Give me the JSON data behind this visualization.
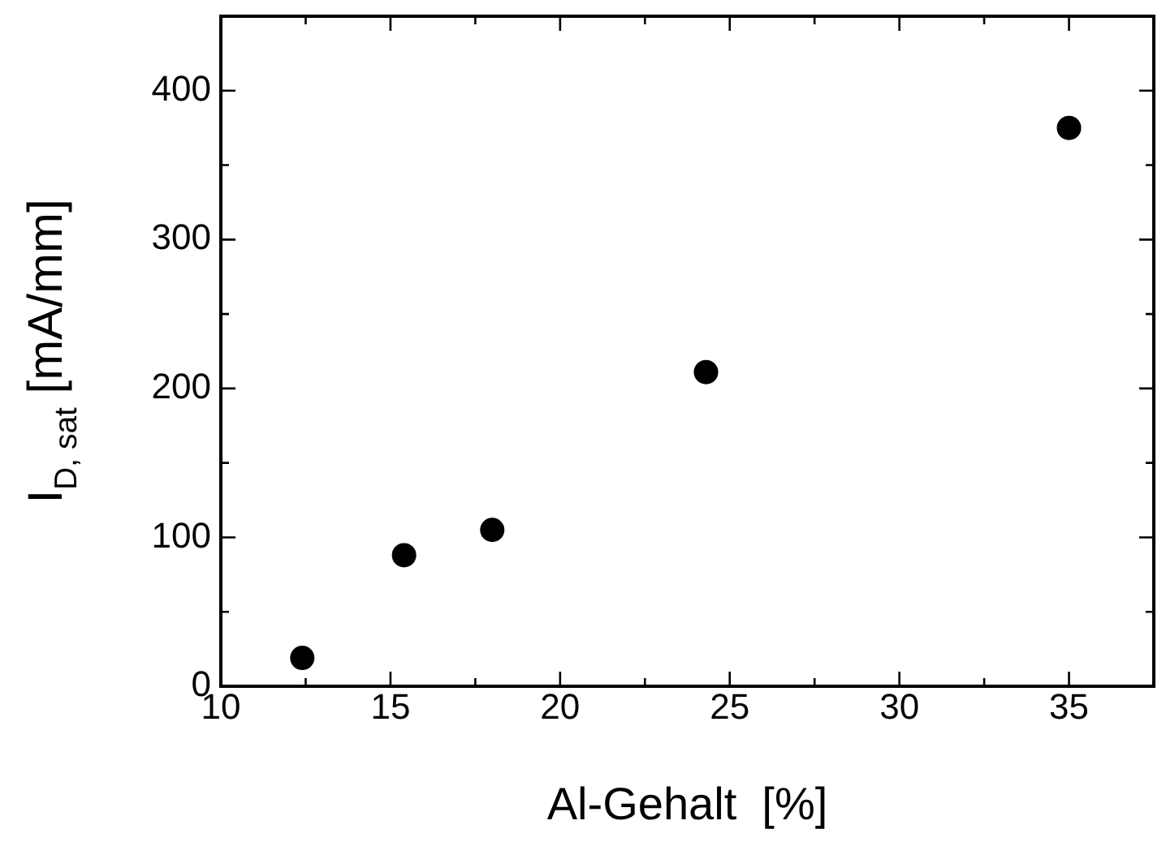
{
  "chart_data": {
    "type": "scatter",
    "xlabel": "Al-Gehalt  [%]",
    "ylabel": "I$_{D, sat}$ [mA/mm]",
    "x": [
      12.4,
      15.4,
      18.0,
      24.3,
      35.0
    ],
    "series": [
      {
        "color": "#000000",
        "values": [
          19,
          88,
          105,
          211,
          375
        ]
      }
    ],
    "xlim": [
      10,
      37.5
    ],
    "xticks": [
      10,
      {
        "value": 12.5,
        "label": null
      },
      15,
      {
        "value": 17.5,
        "label": null
      },
      20,
      {
        "value": 22.5,
        "label": null
      },
      25,
      {
        "value": 27.5,
        "label": null
      },
      30,
      {
        "value": 32.5,
        "label": null
      },
      35
    ],
    "ylim": [
      0,
      450
    ],
    "yticks": [
      0,
      {
        "value": 50,
        "label": null
      },
      100,
      {
        "value": 150,
        "label": null
      },
      200,
      {
        "value": 250,
        "label": null
      },
      300,
      {
        "value": 350,
        "label": null
      },
      400
    ],
    "grid": false,
    "legend": false,
    "marker": "circle"
  }
}
